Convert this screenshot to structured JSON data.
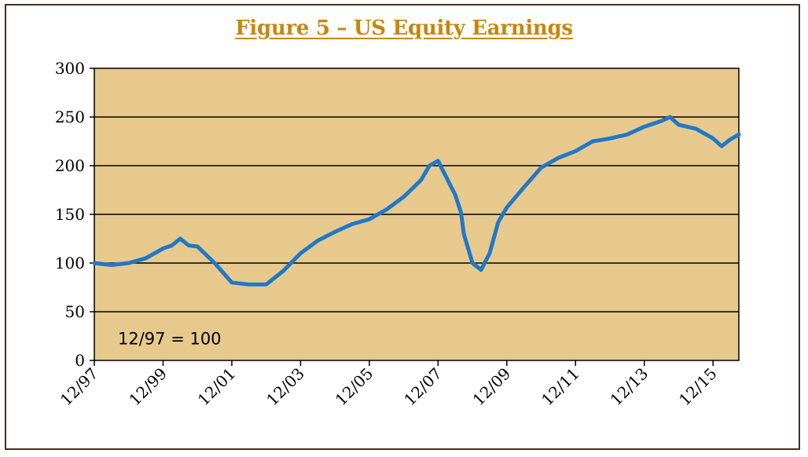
{
  "title": "Figure 5 – US Equity Earnings",
  "chart_data": {
    "type": "line",
    "title": "Figure 5 – US Equity Earnings",
    "annotation": "12/97 = 100",
    "xlabel": "",
    "ylabel": "",
    "ylim": [
      0,
      300
    ],
    "yticks": [
      0,
      50,
      100,
      150,
      200,
      250,
      300
    ],
    "xticks": [
      "12/97",
      "12/99",
      "12/01",
      "12/03",
      "12/05",
      "12/07",
      "12/09",
      "12/11",
      "12/13",
      "12/15"
    ],
    "x_range": [
      "12/97",
      "09/16"
    ],
    "grid": "horizontal",
    "plot_background": "#e8c98d",
    "line_color": "#1f78c8",
    "series": [
      {
        "x": [
          "12/97",
          "06/98",
          "12/98",
          "06/99",
          "12/99",
          "03/00",
          "06/00",
          "09/00",
          "12/00",
          "06/01",
          "12/01",
          "06/02",
          "12/02",
          "06/03",
          "12/03",
          "06/04",
          "12/04",
          "06/05",
          "12/05",
          "06/06",
          "12/06",
          "06/07",
          "09/07",
          "12/07",
          "06/08",
          "08/08",
          "09/08",
          "12/08",
          "03/09",
          "06/09",
          "09/09",
          "12/09",
          "06/10",
          "12/10",
          "06/11",
          "12/11",
          "06/12",
          "12/12",
          "06/13",
          "12/13",
          "06/14",
          "09/14",
          "12/14",
          "06/15",
          "12/15",
          "03/16",
          "06/16",
          "09/16"
        ],
        "y": [
          100,
          98,
          100,
          105,
          115,
          118,
          125,
          118,
          117,
          100,
          80,
          78,
          78,
          92,
          110,
          123,
          132,
          140,
          145,
          155,
          168,
          185,
          200,
          205,
          170,
          152,
          130,
          100,
          93,
          110,
          142,
          157,
          178,
          198,
          208,
          215,
          225,
          228,
          232,
          240,
          246,
          250,
          242,
          238,
          228,
          220,
          227,
          232
        ]
      }
    ]
  }
}
